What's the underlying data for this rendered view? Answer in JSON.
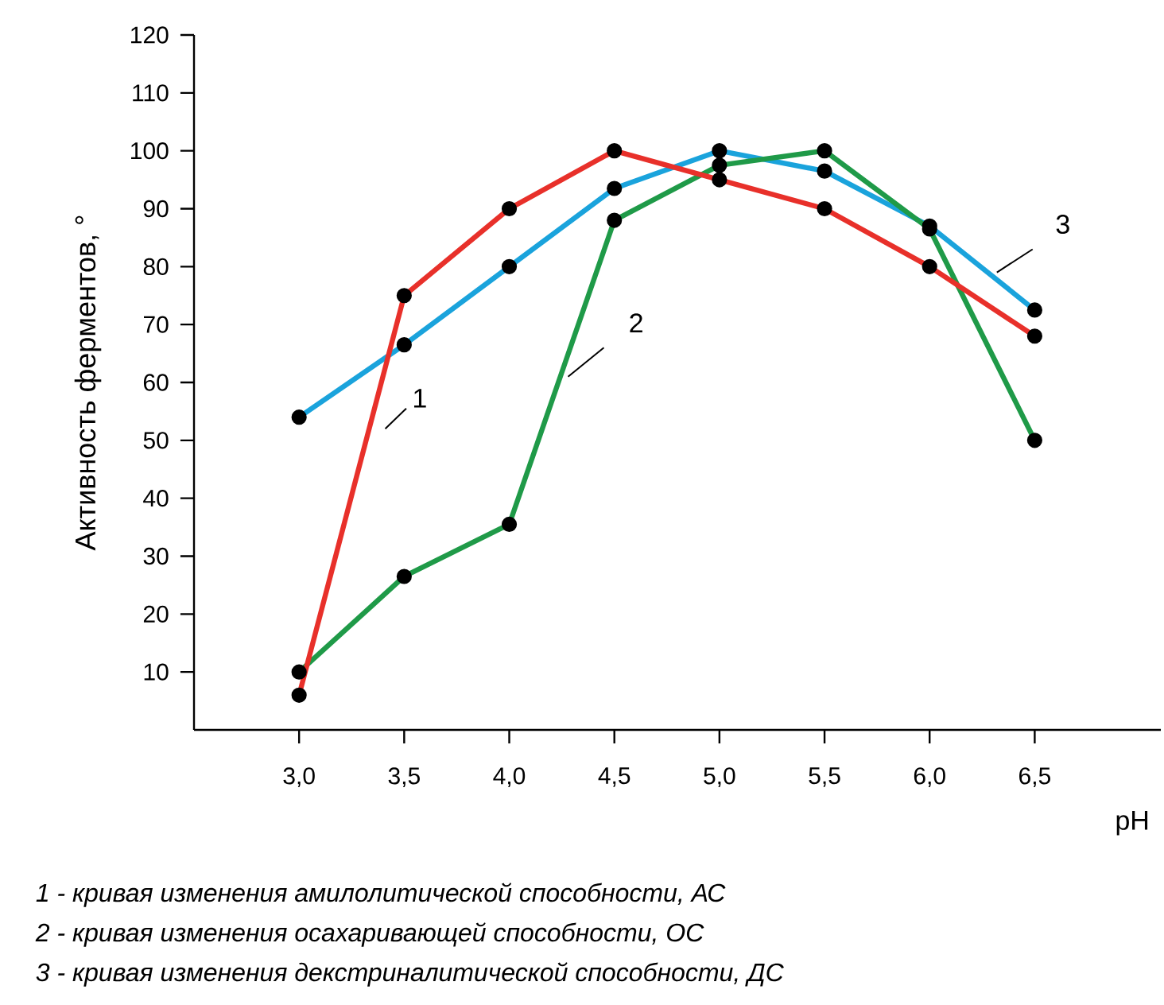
{
  "chart_data": {
    "type": "line",
    "xlabel": "pH",
    "ylabel": "Активность ферментов, °",
    "x": [
      3.0,
      3.5,
      4.0,
      4.5,
      5.0,
      5.5,
      6.0,
      6.5
    ],
    "series": [
      {
        "name": "1",
        "color": "#e8302a",
        "values": [
          6,
          75,
          90,
          100,
          95,
          90,
          80,
          68
        ]
      },
      {
        "name": "2",
        "color": "#1f9a48",
        "values": [
          10,
          26.5,
          35.5,
          88,
          97.5,
          100,
          86.5,
          50
        ]
      },
      {
        "name": "3",
        "color": "#1aa3dc",
        "values": [
          54,
          66.5,
          80,
          93.5,
          100,
          96.5,
          87,
          72.5
        ]
      }
    ],
    "xlim": [
      2.5,
      7.1
    ],
    "ylim": [
      0,
      120
    ],
    "xticks": [
      {
        "value": 3.0,
        "label": "3,0"
      },
      {
        "value": 3.5,
        "label": "3,5"
      },
      {
        "value": 4.0,
        "label": "4,0"
      },
      {
        "value": 4.5,
        "label": "4,5"
      },
      {
        "value": 5.0,
        "label": "5,0"
      },
      {
        "value": 5.5,
        "label": "5,5"
      },
      {
        "value": 6.0,
        "label": "6,0"
      },
      {
        "value": 6.5,
        "label": "6,5"
      }
    ],
    "yticks": [
      10,
      20,
      30,
      40,
      50,
      60,
      70,
      80,
      90,
      100,
      110,
      120
    ],
    "marker": "circle",
    "line_style": "solid",
    "grid": false,
    "legend": false,
    "annotations": [
      "1 - кривая изменения амилолитической способности, АС",
      "2 - кривая изменения осахаривающей способности, ОС",
      "3 - кривая изменения декстриналитической способности, ДС"
    ]
  }
}
